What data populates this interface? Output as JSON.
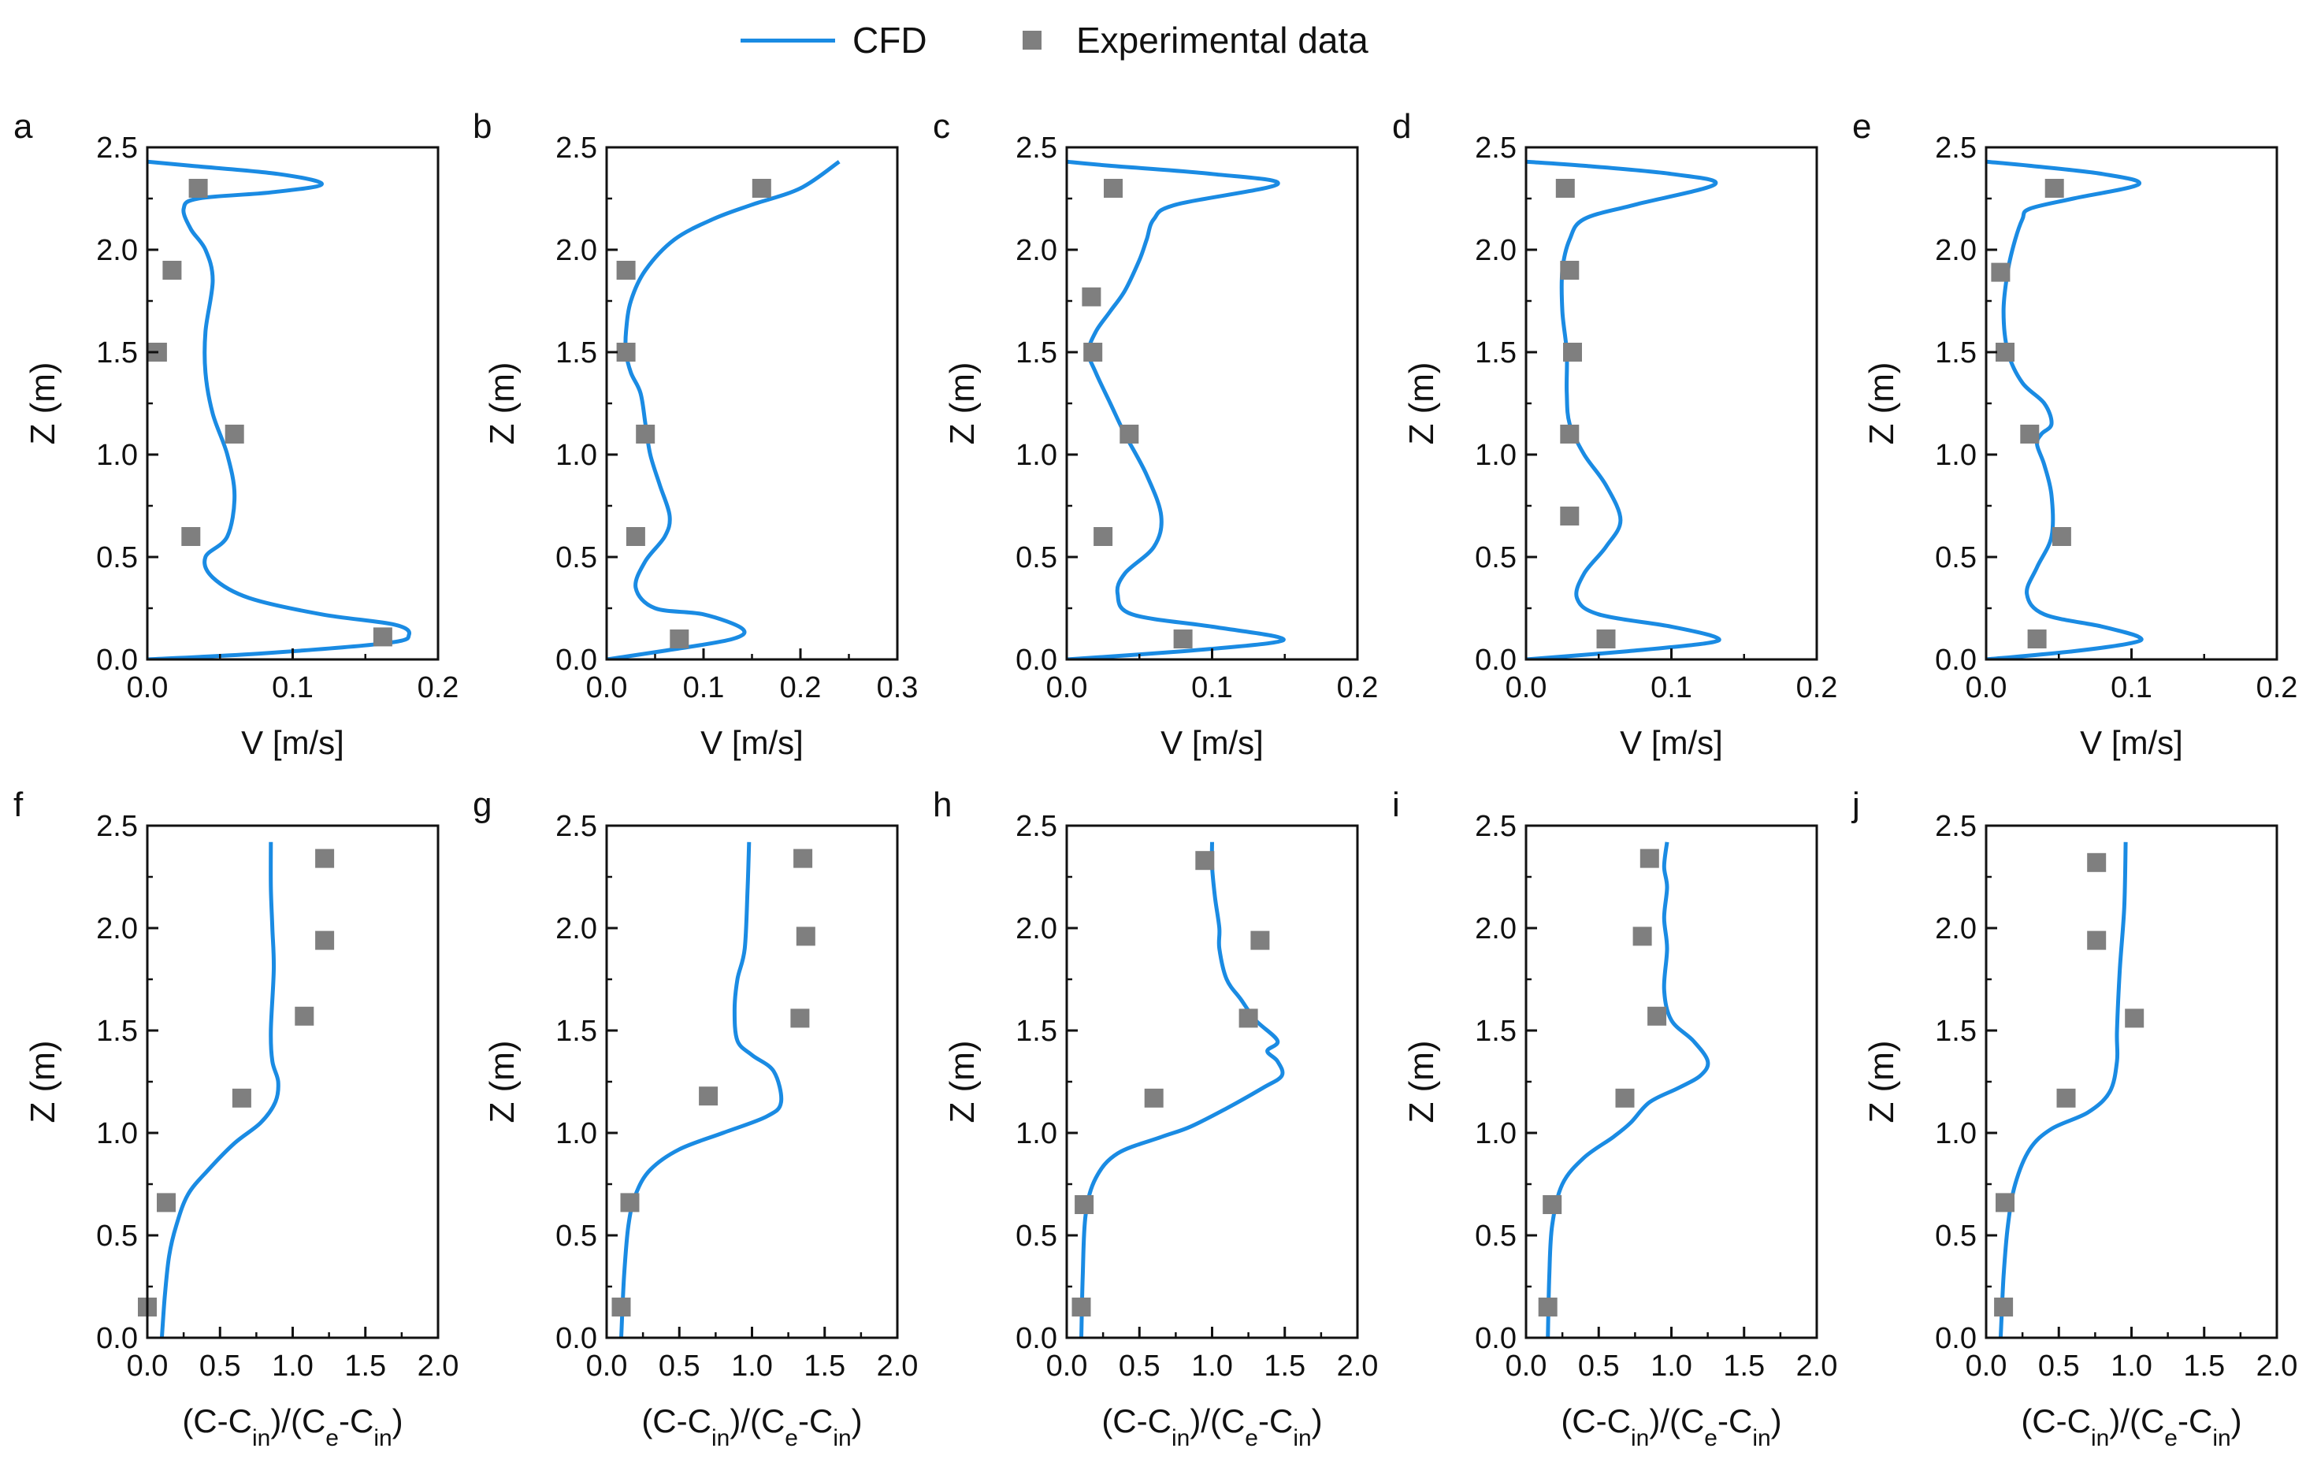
{
  "colors": {
    "cfd": "#1a8be3",
    "experimental": "#7f7f7f",
    "axis": "#111111"
  },
  "legend": {
    "cfd_label": "CFD",
    "exp_label": "Experimental data"
  },
  "chart_data": [
    {
      "panel": "a",
      "type": "line+scatter",
      "xlabel": "V [m/s]",
      "ylabel": "Z (m)",
      "xlim": [
        0,
        0.2
      ],
      "ylim": [
        0,
        2.5
      ],
      "xticks": [
        "0.0",
        "0.1",
        "0.2"
      ],
      "yticks": [
        "0.0",
        "0.5",
        "1.0",
        "1.5",
        "2.0",
        "2.5"
      ],
      "series": [
        {
          "name": "CFD",
          "type": "line",
          "x": [
            0.0,
            0.08,
            0.165,
            0.18,
            0.17,
            0.12,
            0.07,
            0.045,
            0.04,
            0.055,
            0.06,
            0.055,
            0.045,
            0.04,
            0.04,
            0.045,
            0.04,
            0.03,
            0.025,
            0.035,
            0.085,
            0.12,
            0.09,
            0.03,
            0.0
          ],
          "y": [
            0.0,
            0.03,
            0.08,
            0.12,
            0.17,
            0.22,
            0.3,
            0.4,
            0.5,
            0.6,
            0.8,
            1.0,
            1.2,
            1.4,
            1.6,
            1.85,
            2.0,
            2.1,
            2.2,
            2.25,
            2.28,
            2.32,
            2.37,
            2.41,
            2.43
          ]
        },
        {
          "name": "Experimental data",
          "type": "scatter",
          "x": [
            0.162,
            0.03,
            0.06,
            0.007,
            0.017,
            0.035
          ],
          "y": [
            0.11,
            0.6,
            1.1,
            1.5,
            1.9,
            2.3
          ]
        }
      ]
    },
    {
      "panel": "b",
      "type": "line+scatter",
      "xlabel": "V [m/s]",
      "ylabel": "Z (m)",
      "xlim": [
        0,
        0.3
      ],
      "ylim": [
        0,
        2.5
      ],
      "xticks": [
        "0.0",
        "0.1",
        "0.2",
        "0.3"
      ],
      "yticks": [
        "0.0",
        "0.5",
        "1.0",
        "1.5",
        "2.0",
        "2.5"
      ],
      "series": [
        {
          "name": "CFD",
          "type": "line",
          "x": [
            0.0,
            0.07,
            0.13,
            0.14,
            0.1,
            0.05,
            0.03,
            0.04,
            0.06,
            0.065,
            0.055,
            0.045,
            0.04,
            0.035,
            0.025,
            0.02,
            0.02,
            0.025,
            0.04,
            0.07,
            0.11,
            0.15,
            0.2,
            0.24
          ],
          "y": [
            0.0,
            0.05,
            0.1,
            0.15,
            0.22,
            0.25,
            0.35,
            0.48,
            0.6,
            0.7,
            0.85,
            1.0,
            1.15,
            1.3,
            1.4,
            1.5,
            1.6,
            1.75,
            1.9,
            2.05,
            2.15,
            2.22,
            2.3,
            2.43
          ]
        },
        {
          "name": "Experimental data",
          "type": "scatter",
          "x": [
            0.075,
            0.03,
            0.04,
            0.02,
            0.02,
            0.16
          ],
          "y": [
            0.1,
            0.6,
            1.1,
            1.5,
            1.9,
            2.3
          ]
        }
      ]
    },
    {
      "panel": "c",
      "type": "line+scatter",
      "xlabel": "V [m/s]",
      "ylabel": "Z (m)",
      "xlim": [
        0,
        0.2
      ],
      "ylim": [
        0,
        2.5
      ],
      "xticks": [
        "0.0",
        "0.1",
        "0.2"
      ],
      "yticks": [
        "0.0",
        "0.5",
        "1.0",
        "1.5",
        "2.0",
        "2.5"
      ],
      "series": [
        {
          "name": "CFD",
          "type": "line",
          "x": [
            0.0,
            0.08,
            0.14,
            0.145,
            0.1,
            0.045,
            0.035,
            0.04,
            0.06,
            0.065,
            0.055,
            0.04,
            0.03,
            0.02,
            0.015,
            0.02,
            0.03,
            0.04,
            0.05,
            0.055,
            0.06,
            0.075,
            0.145,
            0.1,
            0.03,
            0.0
          ],
          "y": [
            0.0,
            0.04,
            0.08,
            0.11,
            0.16,
            0.22,
            0.32,
            0.42,
            0.55,
            0.7,
            0.9,
            1.1,
            1.25,
            1.4,
            1.5,
            1.6,
            1.7,
            1.8,
            1.95,
            2.05,
            2.15,
            2.22,
            2.32,
            2.37,
            2.41,
            2.43
          ]
        },
        {
          "name": "Experimental data",
          "type": "scatter",
          "x": [
            0.08,
            0.025,
            0.043,
            0.018,
            0.017,
            0.032
          ],
          "y": [
            0.1,
            0.6,
            1.1,
            1.5,
            1.77,
            2.3
          ]
        }
      ]
    },
    {
      "panel": "d",
      "type": "line+scatter",
      "xlabel": "V [m/s]",
      "ylabel": "Z (m)",
      "xlim": [
        0,
        0.2
      ],
      "ylim": [
        0,
        2.5
      ],
      "xticks": [
        "0.0",
        "0.1",
        "0.2"
      ],
      "yticks": [
        "0.0",
        "0.5",
        "1.0",
        "1.5",
        "2.0",
        "2.5"
      ],
      "series": [
        {
          "name": "CFD",
          "type": "line",
          "x": [
            0.0,
            0.07,
            0.125,
            0.13,
            0.1,
            0.05,
            0.035,
            0.04,
            0.055,
            0.065,
            0.055,
            0.04,
            0.03,
            0.028,
            0.028,
            0.025,
            0.025,
            0.03,
            0.04,
            0.075,
            0.13,
            0.1,
            0.04,
            0.0
          ],
          "y": [
            0.0,
            0.04,
            0.08,
            0.11,
            0.16,
            0.22,
            0.3,
            0.42,
            0.55,
            0.68,
            0.85,
            1.0,
            1.15,
            1.3,
            1.5,
            1.7,
            1.9,
            2.05,
            2.15,
            2.22,
            2.32,
            2.37,
            2.41,
            2.43
          ]
        },
        {
          "name": "Experimental data",
          "type": "scatter",
          "x": [
            0.055,
            0.03,
            0.03,
            0.032,
            0.03,
            0.027
          ],
          "y": [
            0.1,
            0.7,
            1.1,
            1.5,
            1.9,
            2.3
          ]
        }
      ]
    },
    {
      "panel": "e",
      "type": "line+scatter",
      "xlabel": "V [m/s]",
      "ylabel": "Z (m)",
      "xlim": [
        0,
        0.2
      ],
      "ylim": [
        0,
        2.5
      ],
      "xticks": [
        "0.0",
        "0.1",
        "0.2"
      ],
      "yticks": [
        "0.0",
        "0.5",
        "1.0",
        "1.5",
        "2.0",
        "2.5"
      ],
      "series": [
        {
          "name": "CFD",
          "type": "line",
          "x": [
            0.0,
            0.06,
            0.1,
            0.105,
            0.08,
            0.04,
            0.028,
            0.035,
            0.045,
            0.045,
            0.04,
            0.035,
            0.038,
            0.045,
            0.04,
            0.025,
            0.015,
            0.012,
            0.015,
            0.02,
            0.025,
            0.03,
            0.06,
            0.105,
            0.08,
            0.03,
            0.0
          ],
          "y": [
            0.0,
            0.04,
            0.08,
            0.11,
            0.16,
            0.22,
            0.32,
            0.45,
            0.6,
            0.8,
            0.95,
            1.05,
            1.1,
            1.15,
            1.25,
            1.35,
            1.5,
            1.7,
            1.9,
            2.05,
            2.15,
            2.2,
            2.25,
            2.32,
            2.37,
            2.41,
            2.43
          ]
        },
        {
          "name": "Experimental data",
          "type": "scatter",
          "x": [
            0.035,
            0.052,
            0.03,
            0.013,
            0.01,
            0.047
          ],
          "y": [
            0.1,
            0.6,
            1.1,
            1.5,
            1.89,
            2.3
          ]
        }
      ]
    },
    {
      "panel": "f",
      "type": "line+scatter",
      "xlabel": "(C-Cin)/(Ce-Cin)",
      "ylabel": "Z (m)",
      "xlim": [
        0,
        2.0
      ],
      "ylim": [
        0,
        2.5
      ],
      "xticks": [
        "0.0",
        "0.5",
        "1.0",
        "1.5",
        "2.0"
      ],
      "yticks": [
        "0.0",
        "0.5",
        "1.0",
        "1.5",
        "2.0",
        "2.5"
      ],
      "series": [
        {
          "name": "CFD",
          "type": "line",
          "x": [
            0.1,
            0.12,
            0.15,
            0.2,
            0.28,
            0.42,
            0.6,
            0.78,
            0.88,
            0.9,
            0.86,
            0.85,
            0.87,
            0.86,
            0.85,
            0.85
          ],
          "y": [
            0.0,
            0.2,
            0.4,
            0.55,
            0.7,
            0.82,
            0.95,
            1.05,
            1.15,
            1.25,
            1.35,
            1.5,
            1.8,
            2.0,
            2.2,
            2.42
          ]
        },
        {
          "name": "Experimental data",
          "type": "scatter",
          "x": [
            0.0,
            0.13,
            0.65,
            1.08,
            1.22,
            1.22
          ],
          "y": [
            0.15,
            0.66,
            1.17,
            1.57,
            1.94,
            2.34
          ]
        }
      ]
    },
    {
      "panel": "g",
      "type": "line+scatter",
      "xlabel": "(C-Cin)/(Ce-Cin)",
      "ylabel": "Z (m)",
      "xlim": [
        0,
        2.0
      ],
      "ylim": [
        0,
        2.5
      ],
      "xticks": [
        "0.0",
        "0.5",
        "1.0",
        "1.5",
        "2.0"
      ],
      "yticks": [
        "0.0",
        "0.5",
        "1.0",
        "1.5",
        "2.0",
        "2.5"
      ],
      "series": [
        {
          "name": "CFD",
          "type": "line",
          "x": [
            0.1,
            0.12,
            0.15,
            0.2,
            0.3,
            0.5,
            0.8,
            1.1,
            1.2,
            1.15,
            1.0,
            0.9,
            0.88,
            0.9,
            0.95,
            0.97,
            0.98
          ],
          "y": [
            0.0,
            0.3,
            0.55,
            0.7,
            0.82,
            0.92,
            1.0,
            1.08,
            1.15,
            1.3,
            1.38,
            1.45,
            1.6,
            1.75,
            1.9,
            2.2,
            2.42
          ]
        },
        {
          "name": "Experimental data",
          "type": "scatter",
          "x": [
            0.1,
            0.16,
            0.7,
            1.33,
            1.37,
            1.35
          ],
          "y": [
            0.15,
            0.66,
            1.18,
            1.56,
            1.96,
            2.34
          ]
        }
      ]
    },
    {
      "panel": "h",
      "type": "line+scatter",
      "xlabel": "(C-Cin)/(Ce-Cin)",
      "ylabel": "Z (m)",
      "xlim": [
        0,
        2.0
      ],
      "ylim": [
        0,
        2.5
      ],
      "xticks": [
        "0.0",
        "0.5",
        "1.0",
        "1.5",
        "2.0"
      ],
      "yticks": [
        "0.0",
        "0.5",
        "1.0",
        "1.5",
        "2.0",
        "2.5"
      ],
      "series": [
        {
          "name": "CFD",
          "type": "line",
          "x": [
            0.1,
            0.11,
            0.13,
            0.2,
            0.35,
            0.65,
            0.85,
            1.1,
            1.35,
            1.48,
            1.45,
            1.38,
            1.45,
            1.3,
            1.2,
            1.1,
            1.05,
            1.05,
            1.02,
            1.0,
            1.0
          ],
          "y": [
            0.0,
            0.3,
            0.6,
            0.78,
            0.9,
            0.98,
            1.03,
            1.12,
            1.22,
            1.28,
            1.35,
            1.4,
            1.45,
            1.55,
            1.65,
            1.75,
            1.9,
            2.0,
            2.15,
            2.3,
            2.42
          ]
        },
        {
          "name": "Experimental data",
          "type": "scatter",
          "x": [
            0.1,
            0.12,
            0.6,
            1.25,
            1.33,
            0.95
          ],
          "y": [
            0.15,
            0.65,
            1.17,
            1.56,
            1.94,
            2.33
          ]
        }
      ]
    },
    {
      "panel": "i",
      "type": "line+scatter",
      "xlabel": "(C-Cin)/(Ce-Cin)",
      "ylabel": "Z (m)",
      "xlim": [
        0,
        2.0
      ],
      "ylim": [
        0,
        2.5
      ],
      "xticks": [
        "0.0",
        "0.5",
        "1.0",
        "1.5",
        "2.0"
      ],
      "yticks": [
        "0.0",
        "0.5",
        "1.0",
        "1.5",
        "2.0",
        "2.5"
      ],
      "series": [
        {
          "name": "CFD",
          "type": "line",
          "x": [
            0.15,
            0.16,
            0.18,
            0.25,
            0.4,
            0.6,
            0.72,
            0.85,
            1.05,
            1.2,
            1.25,
            1.15,
            1.0,
            0.95,
            0.97,
            0.95,
            0.97,
            0.95,
            0.97
          ],
          "y": [
            0.0,
            0.3,
            0.55,
            0.75,
            0.88,
            0.98,
            1.05,
            1.15,
            1.22,
            1.28,
            1.35,
            1.45,
            1.55,
            1.7,
            1.9,
            2.05,
            2.2,
            2.3,
            2.42
          ]
        },
        {
          "name": "Experimental data",
          "type": "scatter",
          "x": [
            0.15,
            0.18,
            0.68,
            0.9,
            0.8,
            0.85
          ],
          "y": [
            0.15,
            0.65,
            1.17,
            1.57,
            1.96,
            2.34
          ]
        }
      ]
    },
    {
      "panel": "j",
      "type": "line+scatter",
      "xlabel": "(C-Cin)/(Ce-Cin)",
      "ylabel": "Z (m)",
      "xlim": [
        0,
        2.0
      ],
      "ylim": [
        0,
        2.5
      ],
      "xticks": [
        "0.0",
        "0.5",
        "1.0",
        "1.5",
        "2.0"
      ],
      "yticks": [
        "0.0",
        "0.5",
        "1.0",
        "1.5",
        "2.0",
        "2.5"
      ],
      "series": [
        {
          "name": "CFD",
          "type": "line",
          "x": [
            0.1,
            0.12,
            0.15,
            0.2,
            0.3,
            0.45,
            0.7,
            0.85,
            0.9,
            0.9,
            0.92,
            0.95,
            0.96
          ],
          "y": [
            0.0,
            0.3,
            0.55,
            0.75,
            0.92,
            1.02,
            1.1,
            1.2,
            1.35,
            1.5,
            1.8,
            2.1,
            2.42
          ]
        },
        {
          "name": "Experimental data",
          "type": "scatter",
          "x": [
            0.12,
            0.13,
            0.55,
            1.02,
            0.76,
            0.76
          ],
          "y": [
            0.15,
            0.66,
            1.17,
            1.56,
            1.94,
            2.32
          ]
        }
      ]
    }
  ]
}
